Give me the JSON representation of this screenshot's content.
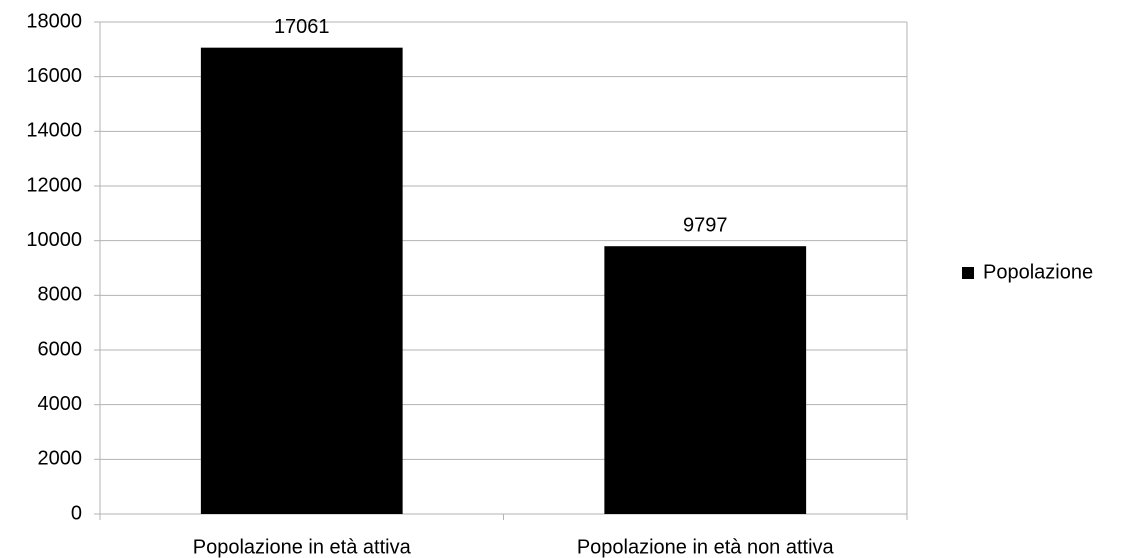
{
  "chart_data": {
    "type": "bar",
    "categories": [
      "Popolazione in età attiva",
      "Popolazione in età non attiva"
    ],
    "series": [
      {
        "name": "Popolazione",
        "color": "#000000",
        "values": [
          17061,
          9797
        ]
      }
    ],
    "ylim": [
      0,
      18000
    ],
    "yticks": [
      0,
      2000,
      4000,
      6000,
      8000,
      10000,
      12000,
      14000,
      16000,
      18000
    ],
    "grid": true,
    "legend": "right"
  }
}
